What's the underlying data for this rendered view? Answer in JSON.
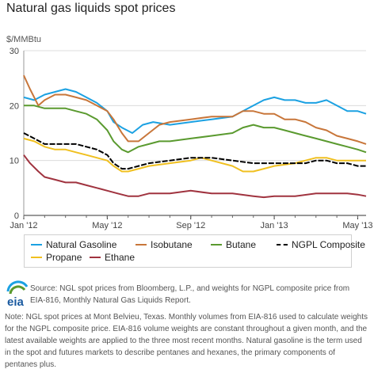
{
  "page": {
    "title": "Natural gas liquids spot prices",
    "source": "Source: NGL spot prices from Bloomberg, L.P., and weights for NGPL composite price from EIA-816, Monthly Natural Gas Liquids Report.",
    "note": "Note: NGL spot prices at Mont Belvieu, Texas. Monthly volumes from EIA-816 used to calculate weights for the NGPL composite price. EIA-816 volume weights are constant throughout a given month, and the latest available weights are applied to the three most recent months. Natural gasoline is the term used in the spot and futures markets to describe pentanes and hexanes, the primary components of pentanes plus.",
    "logo_text": "eia"
  },
  "chart_data": {
    "type": "line",
    "title": "Natural gas liquids spot prices",
    "ylabel": "$/MMBtu",
    "xlabel": "",
    "ylim": [
      0,
      30
    ],
    "yticks": [
      0,
      10,
      20,
      30
    ],
    "xlim": [
      0,
      16.4
    ],
    "xticks": [
      {
        "x": 0,
        "label": "Jan '12"
      },
      {
        "x": 4,
        "label": "May '12"
      },
      {
        "x": 8,
        "label": "Sep '12"
      },
      {
        "x": 12,
        "label": "Jan '13"
      },
      {
        "x": 16,
        "label": "May '13"
      }
    ],
    "grid": true,
    "legend_position": "bottom",
    "series": [
      {
        "name": "Natural Gasoline",
        "color": "#1ba1e2",
        "points": [
          [
            0,
            21.5
          ],
          [
            0.5,
            21
          ],
          [
            1,
            22
          ],
          [
            1.5,
            22.5
          ],
          [
            2,
            23
          ],
          [
            2.5,
            22.5
          ],
          [
            3,
            21.5
          ],
          [
            3.5,
            20.5
          ],
          [
            4,
            19
          ],
          [
            4.3,
            17
          ],
          [
            4.7,
            16
          ],
          [
            5.2,
            15
          ],
          [
            5.7,
            16.5
          ],
          [
            6.2,
            17
          ],
          [
            7,
            16.5
          ],
          [
            8,
            17
          ],
          [
            9,
            17.5
          ],
          [
            10,
            18
          ],
          [
            10.5,
            19
          ],
          [
            11,
            20
          ],
          [
            11.5,
            21
          ],
          [
            12,
            21.5
          ],
          [
            12.5,
            21
          ],
          [
            13,
            21
          ],
          [
            13.5,
            20.5
          ],
          [
            14,
            20.5
          ],
          [
            14.5,
            21
          ],
          [
            15,
            20
          ],
          [
            15.5,
            19
          ],
          [
            16,
            19
          ],
          [
            16.4,
            18.5
          ]
        ]
      },
      {
        "name": "Isobutane",
        "color": "#c8763a",
        "points": [
          [
            0,
            25.5
          ],
          [
            0.3,
            23
          ],
          [
            0.7,
            20
          ],
          [
            1,
            21
          ],
          [
            1.5,
            22
          ],
          [
            2,
            22
          ],
          [
            2.5,
            21.5
          ],
          [
            3,
            21
          ],
          [
            3.5,
            20
          ],
          [
            4,
            19
          ],
          [
            4.3,
            17.5
          ],
          [
            4.7,
            15
          ],
          [
            5,
            13.5
          ],
          [
            5.5,
            13.5
          ],
          [
            6,
            15
          ],
          [
            6.5,
            16.5
          ],
          [
            7,
            17
          ],
          [
            8,
            17.5
          ],
          [
            9,
            18
          ],
          [
            10,
            18
          ],
          [
            10.5,
            19
          ],
          [
            11,
            19
          ],
          [
            11.5,
            18.5
          ],
          [
            12,
            18.5
          ],
          [
            12.5,
            17.5
          ],
          [
            13,
            17.5
          ],
          [
            13.5,
            17
          ],
          [
            14,
            16
          ],
          [
            14.5,
            15.5
          ],
          [
            15,
            14.5
          ],
          [
            15.5,
            14
          ],
          [
            16,
            13.5
          ],
          [
            16.4,
            13
          ]
        ]
      },
      {
        "name": "Butane",
        "color": "#5a9a2f",
        "points": [
          [
            0,
            20
          ],
          [
            0.5,
            20
          ],
          [
            1,
            19.5
          ],
          [
            1.5,
            19.5
          ],
          [
            2,
            19.5
          ],
          [
            2.5,
            19
          ],
          [
            3,
            18.5
          ],
          [
            3.5,
            17.5
          ],
          [
            4,
            15.5
          ],
          [
            4.3,
            13.5
          ],
          [
            4.7,
            12
          ],
          [
            5,
            11.5
          ],
          [
            5.5,
            12.5
          ],
          [
            6,
            13
          ],
          [
            6.5,
            13.5
          ],
          [
            7,
            13.5
          ],
          [
            8,
            14
          ],
          [
            9,
            14.5
          ],
          [
            10,
            15
          ],
          [
            10.5,
            16
          ],
          [
            11,
            16.5
          ],
          [
            11.5,
            16
          ],
          [
            12,
            16
          ],
          [
            12.5,
            15.5
          ],
          [
            13,
            15
          ],
          [
            13.5,
            14.5
          ],
          [
            14,
            14
          ],
          [
            14.5,
            13.5
          ],
          [
            15,
            13
          ],
          [
            15.5,
            12.5
          ],
          [
            16,
            12
          ],
          [
            16.4,
            11.5
          ]
        ]
      },
      {
        "name": "NGPL Composite",
        "color": "#000000",
        "points": [
          [
            0,
            15
          ],
          [
            0.5,
            14
          ],
          [
            1,
            13
          ],
          [
            1.5,
            13
          ],
          [
            2,
            13
          ],
          [
            2.5,
            13
          ],
          [
            3,
            12.5
          ],
          [
            3.5,
            12
          ],
          [
            4,
            11
          ],
          [
            4.3,
            9.5
          ],
          [
            4.7,
            8.5
          ],
          [
            5,
            8.5
          ],
          [
            5.5,
            9
          ],
          [
            6,
            9.5
          ],
          [
            7,
            10
          ],
          [
            8,
            10.5
          ],
          [
            9,
            10.5
          ],
          [
            10,
            10
          ],
          [
            11,
            9.5
          ],
          [
            12,
            9.5
          ],
          [
            12.5,
            9.5
          ],
          [
            13,
            9.5
          ],
          [
            13.5,
            9.5
          ],
          [
            14,
            10
          ],
          [
            14.5,
            10
          ],
          [
            15,
            9.5
          ],
          [
            15.5,
            9.5
          ],
          [
            16,
            9
          ],
          [
            16.4,
            9
          ]
        ]
      },
      {
        "name": "Propane",
        "color": "#f0c020",
        "points": [
          [
            0,
            14
          ],
          [
            0.5,
            13.5
          ],
          [
            1,
            12.5
          ],
          [
            1.5,
            12
          ],
          [
            2,
            12
          ],
          [
            2.5,
            11.5
          ],
          [
            3,
            11
          ],
          [
            3.5,
            10.5
          ],
          [
            4,
            10
          ],
          [
            4.3,
            9
          ],
          [
            4.7,
            8
          ],
          [
            5,
            8
          ],
          [
            5.5,
            8.5
          ],
          [
            6,
            9
          ],
          [
            7,
            9.5
          ],
          [
            8,
            10
          ],
          [
            8.5,
            10.5
          ],
          [
            9,
            10
          ],
          [
            10,
            9
          ],
          [
            10.5,
            8
          ],
          [
            11,
            8
          ],
          [
            11.5,
            8.5
          ],
          [
            12,
            9
          ],
          [
            13,
            9.5
          ],
          [
            14,
            10.5
          ],
          [
            14.5,
            10.5
          ],
          [
            15,
            10
          ],
          [
            15.5,
            10
          ],
          [
            16,
            10
          ],
          [
            16.4,
            10
          ]
        ]
      },
      {
        "name": "Ethane",
        "color": "#a0333f",
        "points": [
          [
            0,
            11
          ],
          [
            0.3,
            9.5
          ],
          [
            0.7,
            8
          ],
          [
            1,
            7
          ],
          [
            1.5,
            6.5
          ],
          [
            2,
            6
          ],
          [
            2.5,
            6
          ],
          [
            3,
            5.5
          ],
          [
            3.5,
            5
          ],
          [
            4,
            4.5
          ],
          [
            4.5,
            4
          ],
          [
            5,
            3.5
          ],
          [
            5.5,
            3.5
          ],
          [
            6,
            4
          ],
          [
            7,
            4
          ],
          [
            8,
            4.5
          ],
          [
            9,
            4
          ],
          [
            10,
            4
          ],
          [
            11,
            3.5
          ],
          [
            11.5,
            3.3
          ],
          [
            12,
            3.5
          ],
          [
            13,
            3.5
          ],
          [
            14,
            4
          ],
          [
            15,
            4
          ],
          [
            15.5,
            4
          ],
          [
            16,
            3.8
          ],
          [
            16.4,
            3.5
          ]
        ]
      }
    ]
  }
}
